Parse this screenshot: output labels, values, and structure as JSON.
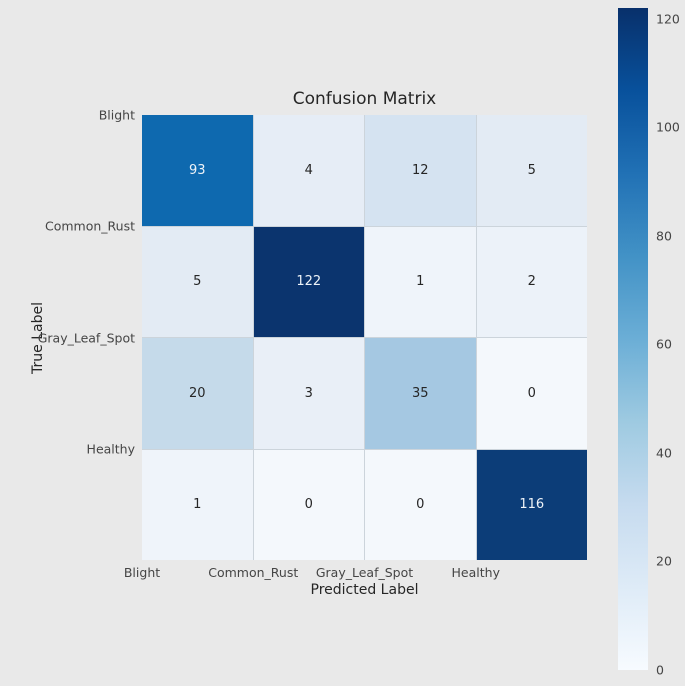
{
  "title": "Confusion Matrix",
  "axes": {
    "x_label": "Predicted Label",
    "y_label": "True Label",
    "x_tick_labels": [
      "Blight",
      "Common_Rust",
      "Gray_Leaf_Spot",
      "Healthy"
    ],
    "y_tick_labels": [
      "Blight",
      "Common_Rust",
      "Gray_Leaf_Spot",
      "Healthy"
    ]
  },
  "colorbar": {
    "ticks": [
      0,
      20,
      40,
      60,
      80,
      100,
      120
    ],
    "vmin": 0,
    "vmax": 122,
    "colormap": "Blues",
    "position": "right"
  },
  "chart_data": {
    "type": "heatmap",
    "title": "Confusion Matrix",
    "xlabel": "Predicted Label",
    "ylabel": "True Label",
    "x_categories": [
      "Blight",
      "Common_Rust",
      "Gray_Leaf_Spot",
      "Healthy"
    ],
    "y_categories": [
      "Blight",
      "Common_Rust",
      "Gray_Leaf_Spot",
      "Healthy"
    ],
    "values": [
      [
        93,
        4,
        12,
        5
      ],
      [
        5,
        122,
        1,
        2
      ],
      [
        20,
        3,
        35,
        0
      ],
      [
        1,
        0,
        0,
        116
      ]
    ],
    "cell_colors": [
      [
        "#0e69af",
        "#e6edf6",
        "#d5e3f1",
        "#e3ebf4"
      ],
      [
        "#e3ebf4",
        "#0b346e",
        "#eff4fa",
        "#ecf2f9"
      ],
      [
        "#c5daea",
        "#e9eff7",
        "#a5c8e2",
        "#f4f8fc"
      ],
      [
        "#eff4fa",
        "#f4f8fc",
        "#f4f8fc",
        "#0c3d78"
      ]
    ],
    "dark_text_threshold": 60,
    "colormap": "Blues",
    "vmin": 0,
    "vmax": 122,
    "grid": false,
    "legend": "colorbar"
  },
  "colors": {
    "figure_background": "#e9e9e9",
    "gridline": "#ccd4db",
    "dark_cell_text": "#eef3f8",
    "light_cell_text": "#262626",
    "tick_text": "#454545",
    "cmap_dark_end": "#08306b",
    "cmap_light_end": "#f7fbff"
  }
}
